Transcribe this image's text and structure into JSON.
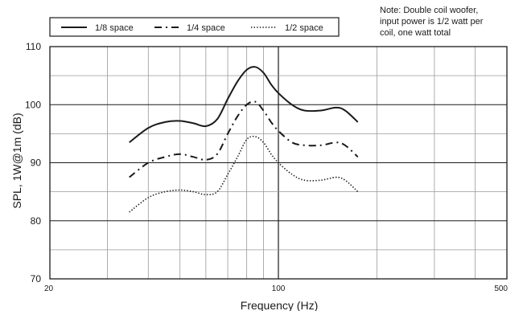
{
  "note": {
    "lines": [
      "Note: Double coil woofer,",
      "input power is 1/2 watt per",
      "coil, one watt total"
    ]
  },
  "chart_data": {
    "type": "line",
    "title": "",
    "xlabel": "Frequency (Hz)",
    "ylabel": "SPL, 1W@1m (dB)",
    "xscale": "log",
    "xlim": [
      20,
      500
    ],
    "ylim": [
      70,
      110
    ],
    "x_tick_labels": [
      20,
      100,
      500
    ],
    "y_tick_labels": [
      70,
      80,
      90,
      100,
      110
    ],
    "grid": true,
    "legend_position": "top-left, above plot",
    "series": [
      {
        "name": "1/8 space",
        "style": "solid",
        "points": [
          [
            35,
            93.5
          ],
          [
            40,
            96
          ],
          [
            45,
            97
          ],
          [
            50,
            97.2
          ],
          [
            55,
            96.8
          ],
          [
            60,
            96.3
          ],
          [
            65,
            97.5
          ],
          [
            70,
            101
          ],
          [
            75,
            104
          ],
          [
            80,
            106
          ],
          [
            85,
            106.5
          ],
          [
            90,
            105.5
          ],
          [
            95,
            103.5
          ],
          [
            100,
            102
          ],
          [
            110,
            100
          ],
          [
            120,
            99
          ],
          [
            135,
            99
          ],
          [
            150,
            99.5
          ],
          [
            160,
            99
          ],
          [
            175,
            97
          ]
        ]
      },
      {
        "name": "1/4 space",
        "style": "dashdot",
        "points": [
          [
            35,
            87.5
          ],
          [
            40,
            90
          ],
          [
            45,
            91
          ],
          [
            50,
            91.5
          ],
          [
            55,
            91
          ],
          [
            60,
            90.5
          ],
          [
            65,
            91.5
          ],
          [
            70,
            95
          ],
          [
            75,
            98
          ],
          [
            80,
            100
          ],
          [
            85,
            100.5
          ],
          [
            90,
            99
          ],
          [
            95,
            97
          ],
          [
            100,
            95.5
          ],
          [
            110,
            93.5
          ],
          [
            120,
            93
          ],
          [
            135,
            93
          ],
          [
            150,
            93.5
          ],
          [
            160,
            93
          ],
          [
            175,
            91
          ]
        ]
      },
      {
        "name": "1/2 space",
        "style": "dotted",
        "points": [
          [
            35,
            81.5
          ],
          [
            40,
            84
          ],
          [
            45,
            85
          ],
          [
            50,
            85.3
          ],
          [
            55,
            85
          ],
          [
            60,
            84.5
          ],
          [
            65,
            85
          ],
          [
            70,
            88
          ],
          [
            75,
            91
          ],
          [
            80,
            94
          ],
          [
            85,
            94.5
          ],
          [
            90,
            93.5
          ],
          [
            95,
            91.5
          ],
          [
            100,
            90
          ],
          [
            110,
            88
          ],
          [
            120,
            87
          ],
          [
            135,
            87
          ],
          [
            150,
            87.5
          ],
          [
            160,
            87
          ],
          [
            175,
            85
          ]
        ]
      }
    ]
  }
}
